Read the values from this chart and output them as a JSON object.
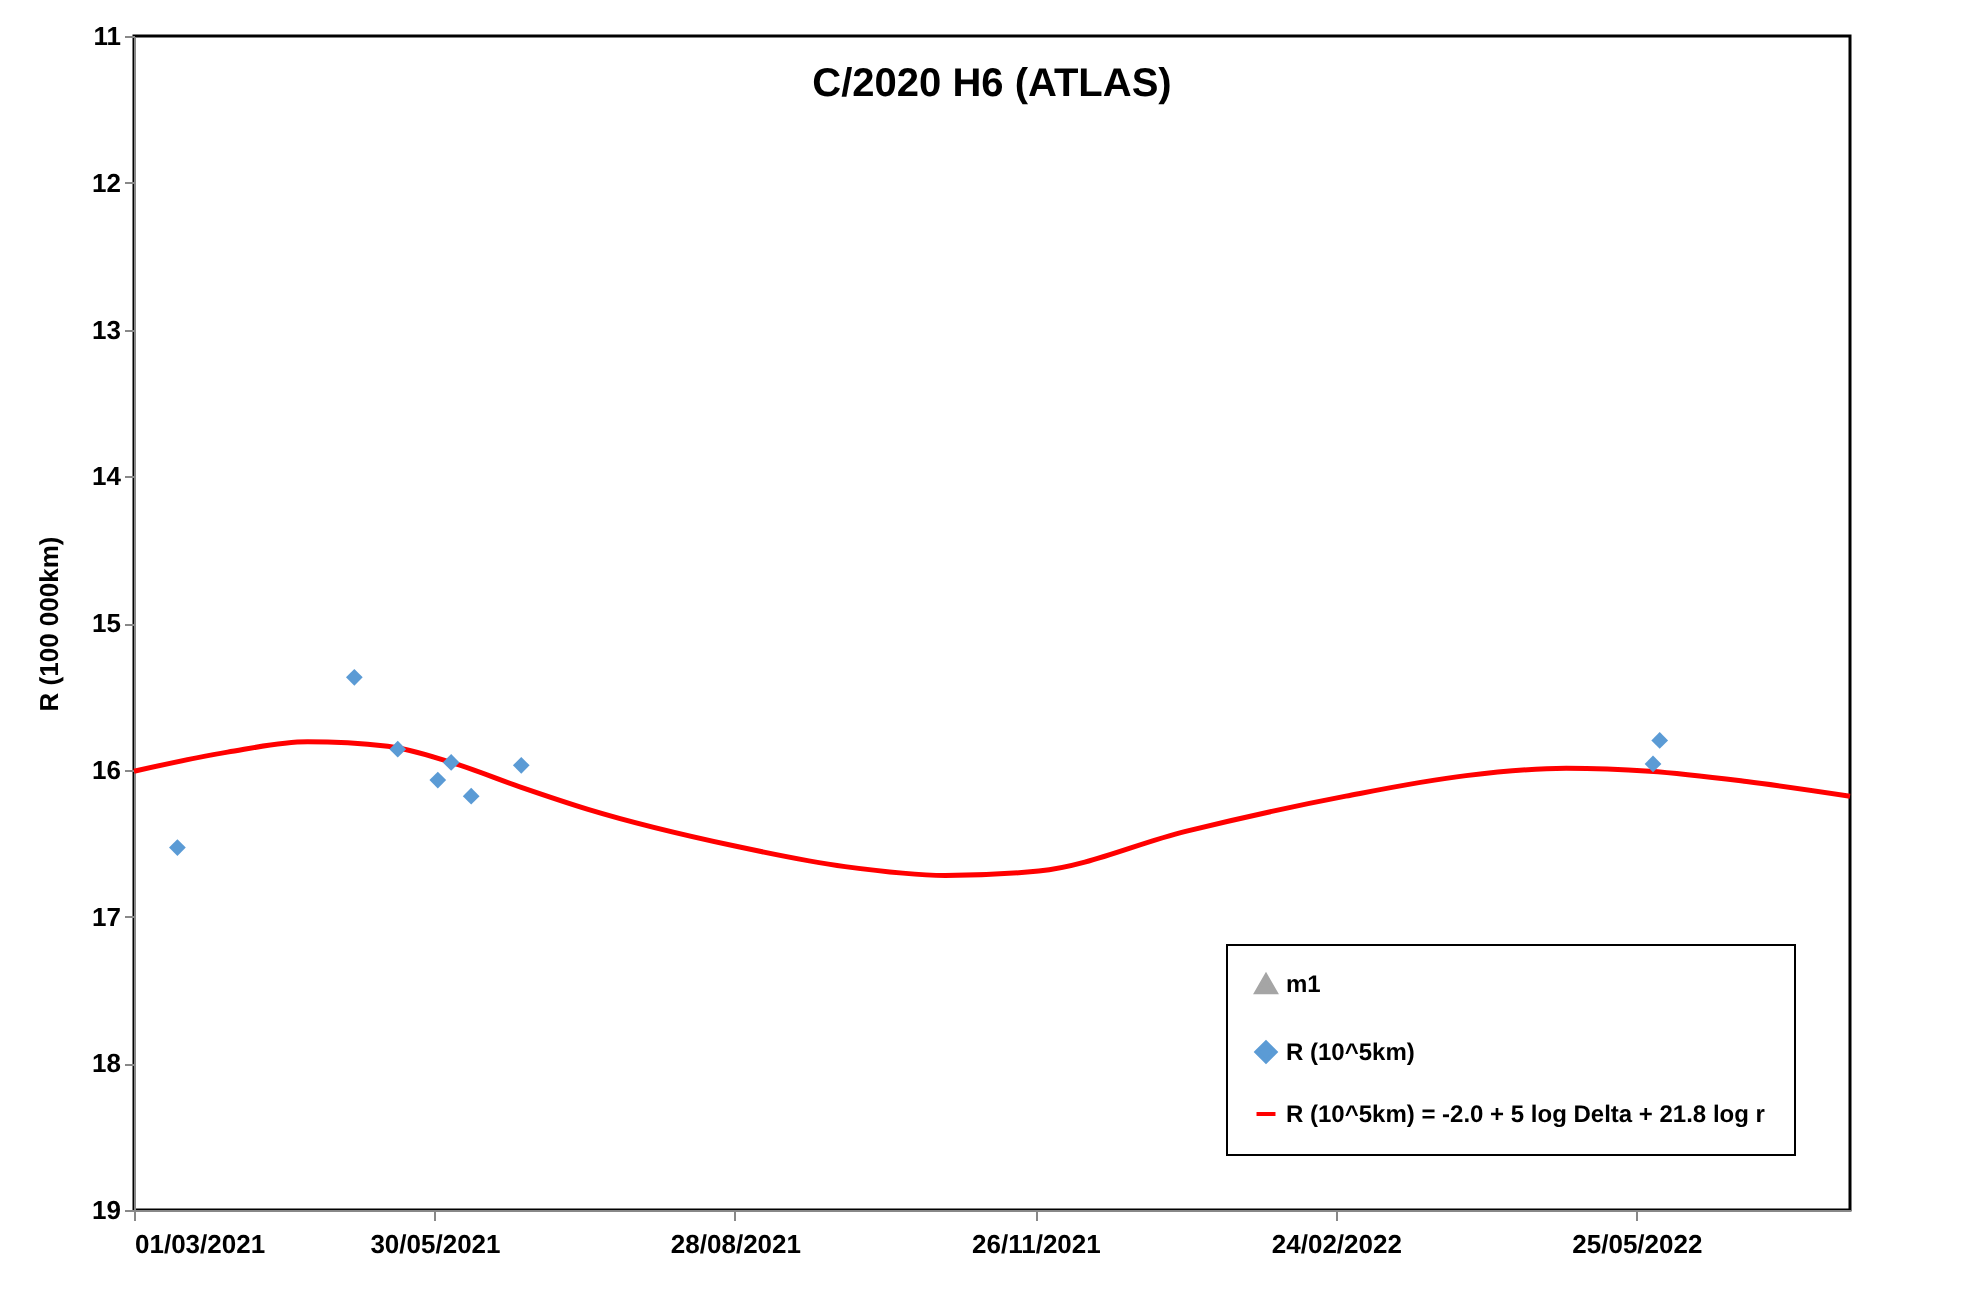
{
  "chart_data": {
    "type": "scatter",
    "title": "C/2020 H6 (ATLAS)",
    "ylabel": "R (100 000km)",
    "xlim": [
      "2021-03-01",
      "2022-07-28"
    ],
    "xticks": [
      {
        "value": "2021-03-01",
        "label": "01/03/2021"
      },
      {
        "value": "2021-05-30",
        "label": "30/05/2021"
      },
      {
        "value": "2021-08-28",
        "label": "28/08/2021"
      },
      {
        "value": "2021-11-26",
        "label": "26/11/2021"
      },
      {
        "value": "2022-02-24",
        "label": "24/02/2022"
      },
      {
        "value": "2022-05-25",
        "label": "25/05/2022"
      }
    ],
    "ylim": [
      19,
      11
    ],
    "yticks": [
      11,
      12,
      13,
      14,
      15,
      16,
      17,
      18,
      19
    ],
    "grid": false,
    "legend": "bottom right",
    "series": [
      {
        "name": "m1",
        "marker": "triangle",
        "color": "#a5a5a5"
      },
      {
        "name": "R (10^5km)",
        "marker": "diamond",
        "color": "#5b9bd5",
        "x": [
          "2021-03-14",
          "2021-05-06",
          "2021-05-19",
          "2021-05-31",
          "2021-06-04",
          "2021-06-10",
          "2021-06-25",
          "2022-05-30",
          "2022-06-01"
        ],
        "values": [
          16.53,
          15.37,
          15.86,
          16.07,
          15.95,
          16.18,
          15.97,
          15.96,
          15.8
        ]
      },
      {
        "name": "R (10^5km) = -2.0 + 5 log Delta + 21.8 log r",
        "type": "line",
        "marker": "none",
        "line_style": "solid",
        "color": "#ff0000",
        "x": [
          "2021-03-01",
          "2021-03-29",
          "2021-04-22",
          "2021-05-16",
          "2021-06-04",
          "2021-06-25",
          "2021-07-15",
          "2021-08-28",
          "2021-09-30",
          "2021-10-30",
          "2021-11-27",
          "2022-01-10",
          "2022-02-27",
          "2022-04-04",
          "2022-05-04",
          "2022-05-29",
          "2022-06-27",
          "2022-07-28"
        ],
        "values": [
          16.01,
          15.88,
          15.81,
          15.84,
          15.95,
          16.12,
          16.27,
          16.52,
          16.66,
          16.72,
          16.69,
          16.42,
          16.18,
          16.04,
          15.99,
          16.01,
          16.08,
          16.18
        ]
      }
    ]
  }
}
